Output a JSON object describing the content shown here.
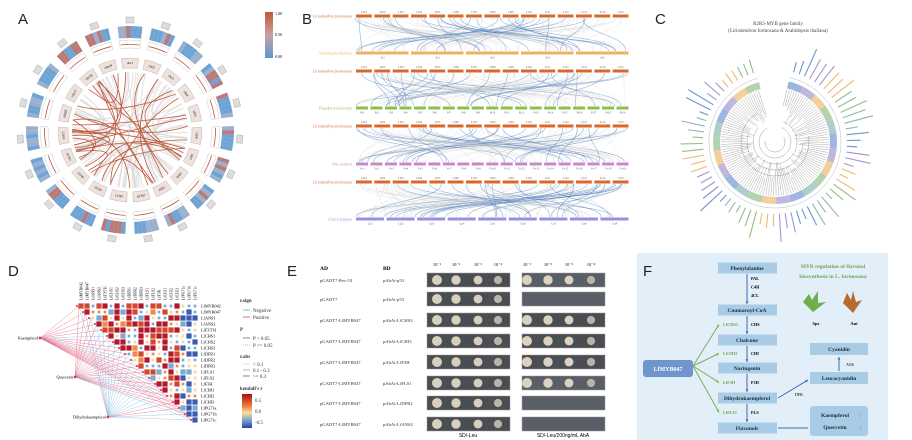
{
  "panels": {
    "a": "A",
    "b": "B",
    "c": "C",
    "d": "D",
    "e": "E",
    "f": "F"
  },
  "panel_a": {
    "chromosomes": [
      "chr1",
      "chr2",
      "chr3",
      "chr4",
      "chr5",
      "chr6",
      "chr7",
      "chr8",
      "chr9",
      "chr10",
      "chr11",
      "chr12",
      "chr13",
      "chr14",
      "chr15",
      "chr16",
      "chr17",
      "chr18",
      "chr19"
    ],
    "colorbar_ticks": [
      "1.00",
      "0.50",
      "0.00"
    ],
    "colors": {
      "high": "#c0573a",
      "low": "#5b9bd0",
      "link_red": "#c0573a",
      "link_grey": "#d6d6d6"
    }
  },
  "panel_b": {
    "rows": [
      {
        "species": "Liriodendron formosana",
        "color": "#d9692a",
        "chroms": [
          "Lf01",
          "Lf02",
          "Lf03",
          "Lf04",
          "Lf05",
          "Lf06",
          "Lf07",
          "Lf08",
          "Lf09",
          "Lf10",
          "Lf11",
          "Lf12",
          "Lf13",
          "Lf14",
          "Lf15"
        ]
      },
      {
        "species": "Arabidopsis thaliana",
        "color": "#f0b060",
        "chroms": [
          "At1",
          "At2",
          "At3",
          "At4",
          "At5"
        ]
      },
      {
        "species": "Liriodendron formosana",
        "color": "#d9692a",
        "chroms": [
          "Lf01",
          "Lf02",
          "Lf03",
          "Lf04",
          "Lf05",
          "Lf06",
          "Lf07",
          "Lf08",
          "Lf09",
          "Lf10",
          "Lf11",
          "Lf12",
          "Lf13",
          "Lf14",
          "Lf15"
        ]
      },
      {
        "species": "Populus trichocarpa",
        "color": "#8dc04a",
        "chroms": [
          "Pt1",
          "Pt2",
          "Pt3",
          "Pt4",
          "Pt5",
          "Pt6",
          "Pt7",
          "Pt8",
          "Pt9",
          "Pt10",
          "Pt11",
          "Pt12",
          "Pt13",
          "Pt14",
          "Pt15",
          "Pt16",
          "Pt17",
          "Pt18",
          "Pt19"
        ]
      },
      {
        "species": "Liriodendron formosana",
        "color": "#d9692a",
        "chroms": [
          "Lf01",
          "Lf02",
          "Lf03",
          "Lf04",
          "Lf05",
          "Lf06",
          "Lf07",
          "Lf08",
          "Lf09",
          "Lf10",
          "Lf11",
          "Lf12",
          "Lf13",
          "Lf14",
          "Lf15"
        ]
      },
      {
        "species": "Vitis vinifera",
        "color": "#c58ac8",
        "chroms": [
          "Vv1",
          "Vv2",
          "Vv3",
          "Vv4",
          "Vv5",
          "Vv6",
          "Vv7",
          "Vv8",
          "Vv9",
          "Vv10",
          "Vv11",
          "Vv12",
          "Vv13",
          "Vv14",
          "Vv15",
          "Vv16",
          "Vv17",
          "Vv18",
          "Vv19"
        ]
      },
      {
        "species": "Liriodendron formosana",
        "color": "#d9692a",
        "chroms": [
          "Lf01",
          "Lf02",
          "Lf03",
          "Lf04",
          "Lf05",
          "Lf06",
          "Lf07",
          "Lf08",
          "Lf09",
          "Lf10",
          "Lf11",
          "Lf12",
          "Lf13",
          "Lf14",
          "Lf15"
        ]
      },
      {
        "species": "Carica papaya",
        "color": "#9b8fe0",
        "chroms": [
          "Cp1",
          "Cp2",
          "Cp3",
          "Cp4",
          "Cp5",
          "Cp6",
          "Cp7",
          "Cp8",
          "Cp9"
        ]
      }
    ],
    "link_color": "#3d72b8"
  },
  "panel_c": {
    "title": "R2R3-MYB gene family",
    "subtitle": "(Liriodendron formosana & Arabidopsis thaliana)",
    "clade_colors": [
      "#4a78c8",
      "#8a7cc4",
      "#e8a94a",
      "#7aab6a",
      "#6aa8a0"
    ]
  },
  "panel_d": {
    "genes": [
      "LfMYB042",
      "LfMYB047",
      "LfANS1",
      "LfANS2",
      "LfF3'5'H",
      "LfCHS1",
      "LfCHS2",
      "LfCHS3",
      "LfDFR1",
      "LfDFR2",
      "LfDFR3",
      "LfFLS1",
      "LfFLS2",
      "LfF3H",
      "LfCHI1",
      "LfCHI2",
      "LfCHI3",
      "LfPG71a",
      "LfPG71b",
      "LfPG71c"
    ],
    "compounds": [
      "Kaempferol",
      "Quercetin",
      "Dihydrokaempferol"
    ],
    "legend": {
      "rsign_title": "r.sign",
      "negative": "Negative",
      "positive": "Positive",
      "p_title": "P",
      "p1": "P < 0.05",
      "p2": "P >= 0.05",
      "rabs_title": "r.abs",
      "r1": "< 0.1",
      "r2": "0.1 - 0.3",
      "r3": ">= 0.3",
      "scale_title": "kendall's r",
      "s1": "0.5",
      "s2": "0.0",
      "s3": "-0.5"
    }
  },
  "panel_e": {
    "ad_header": "AD",
    "bd_header": "BD",
    "dilutions": [
      "10⁻¹",
      "10⁻²",
      "10⁻³",
      "10⁻⁴"
    ],
    "rows": [
      {
        "ad": "pGADT7-Rec-53",
        "bd": "pAbAi-p53",
        "growth": true
      },
      {
        "ad": "pGADT7",
        "bd": "pAbAi-p53",
        "growth": false
      },
      {
        "ad": "pGADT7-LfMYB047",
        "bd": "pAbAi-LfCHS3",
        "growth": true
      },
      {
        "ad": "pGADT7-LfMYB047",
        "bd": "pAbAi-LfCHI3",
        "growth": true
      },
      {
        "ad": "pGADT7-LfMYB047",
        "bd": "pAbAi-LfF3H",
        "growth": true
      },
      {
        "ad": "pGADT7-LfMYB047",
        "bd": "pAbAi-LfFLS1",
        "growth": true
      },
      {
        "ad": "pGADT7-LfMYB047",
        "bd": "pAbAi-LfDFR2",
        "growth": false
      },
      {
        "ad": "pGADT7-LfMYB047",
        "bd": "pAbAi-LfANS2",
        "growth": false
      }
    ],
    "media": [
      "SD/-Leu",
      "SD/-Leu/200ng/mL AbA"
    ]
  },
  "panel_f": {
    "regulator": "LfMYB047",
    "pathway": [
      "Phenylalanine",
      "Coumaroyl-CoA",
      "Chalcone",
      "Naringenin",
      "Dihydrokaempferol",
      "Flavonols"
    ],
    "enzymes_top": [
      "PAL",
      "C4H",
      "4CL"
    ],
    "enzymes": [
      "CHS",
      "CHI",
      "F3H",
      "FLS"
    ],
    "targets": [
      "LfCHS3",
      "LfCHI3",
      "LfF3H",
      "LfFLS1"
    ],
    "branch": [
      "Cyanidin",
      "Leucocyanidin"
    ],
    "branch_enzymes": [
      "ANS",
      "DFR"
    ],
    "products": [
      "Kaempferol",
      "Quercetin"
    ],
    "title_line1": "MYB regulation of flavonol",
    "title_line2": "biosynthesis in L. formosana",
    "leaves": [
      "Spr",
      "Aut"
    ],
    "up_arrow": "↑",
    "colors": {
      "bg": "#e3eff8",
      "box": "#a9cce6",
      "regulator": "#6f95cc",
      "green": "#6aa84f"
    }
  }
}
